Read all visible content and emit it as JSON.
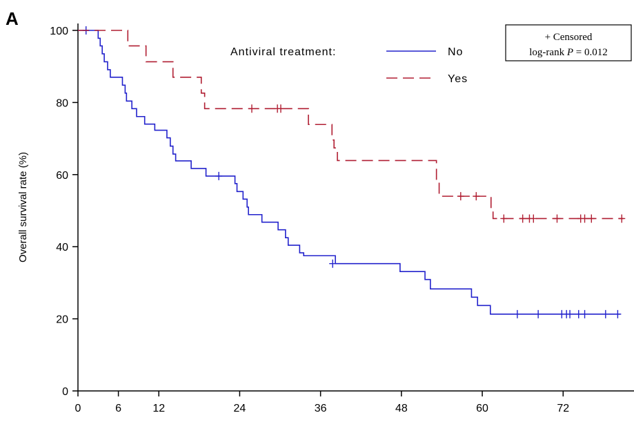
{
  "panel_label": "A",
  "chart_data": {
    "type": "line",
    "ylabel": "Overall survival rate (%)",
    "xlabel": "",
    "xlim": [
      0,
      80
    ],
    "ylim": [
      0,
      100
    ],
    "x_ticks": [
      0,
      6,
      12,
      24,
      36,
      48,
      60,
      72
    ],
    "y_ticks": [
      0,
      20,
      40,
      60,
      80,
      100
    ],
    "legend": {
      "title": "Antiviral treatment:",
      "placement": "top-center"
    },
    "annotation": {
      "line1": "+ Censored",
      "line2_prefix": "log-rank ",
      "line2_italic": "P",
      "line2_suffix": " = 0.012"
    },
    "series": [
      {
        "name": "No",
        "color": "#2222cc",
        "style": "solid",
        "steps": [
          [
            0,
            100
          ],
          [
            3,
            97.8
          ],
          [
            3.3,
            95.7
          ],
          [
            3.6,
            93.5
          ],
          [
            3.9,
            91.3
          ],
          [
            4.4,
            89.1
          ],
          [
            4.8,
            87
          ],
          [
            6.6,
            84.8
          ],
          [
            7,
            82.6
          ],
          [
            7.2,
            80.4
          ],
          [
            8,
            78.3
          ],
          [
            8.7,
            76.1
          ],
          [
            9.9,
            74
          ],
          [
            11.4,
            72.3
          ],
          [
            13.2,
            70.2
          ],
          [
            13.7,
            67.9
          ],
          [
            14.1,
            65.7
          ],
          [
            14.5,
            63.8
          ],
          [
            16.8,
            61.7
          ],
          [
            19,
            59.6
          ],
          [
            23.3,
            57.5
          ],
          [
            23.6,
            55.3
          ],
          [
            24.5,
            53.2
          ],
          [
            25.1,
            51
          ],
          [
            25.3,
            48.9
          ],
          [
            27.3,
            46.8
          ],
          [
            29.7,
            44.7
          ],
          [
            30.8,
            42.5
          ],
          [
            31.2,
            40.4
          ],
          [
            32.9,
            38.3
          ],
          [
            33.5,
            37.5
          ],
          [
            38.2,
            35.3
          ],
          [
            47.8,
            33.1
          ],
          [
            51.5,
            30.9
          ],
          [
            52.3,
            28.3
          ],
          [
            58.4,
            26
          ],
          [
            59.3,
            23.7
          ],
          [
            61.2,
            21.3
          ],
          [
            80.5,
            21.3
          ]
        ],
        "censored": [
          [
            1.2,
            100
          ],
          [
            20.9,
            59.6
          ],
          [
            37.8,
            35.3
          ],
          [
            65.2,
            21.3
          ],
          [
            68.3,
            21.3
          ],
          [
            71.8,
            21.3
          ],
          [
            72.5,
            21.3
          ],
          [
            73,
            21.3
          ],
          [
            74.3,
            21.3
          ],
          [
            75.2,
            21.3
          ],
          [
            78.3,
            21.3
          ],
          [
            80.1,
            21.3
          ]
        ]
      },
      {
        "name": "Yes",
        "color": "#b01e32",
        "style": "dashed",
        "steps": [
          [
            0,
            100
          ],
          [
            7.4,
            95.7
          ],
          [
            10.1,
            91.3
          ],
          [
            14.1,
            87
          ],
          [
            18.3,
            82.6
          ],
          [
            18.8,
            78.3
          ],
          [
            34.2,
            73.9
          ],
          [
            37.7,
            69.6
          ],
          [
            38,
            67.4
          ],
          [
            38.5,
            63.9
          ],
          [
            53.2,
            58.7
          ],
          [
            53.6,
            54
          ],
          [
            61.3,
            50
          ],
          [
            61.6,
            47.8
          ],
          [
            81,
            47.8
          ]
        ],
        "censored": [
          [
            25.8,
            78.3
          ],
          [
            29.6,
            78.3
          ],
          [
            30.1,
            78.3
          ],
          [
            56.8,
            54
          ],
          [
            59.1,
            54
          ],
          [
            63.2,
            47.8
          ],
          [
            66,
            47.8
          ],
          [
            67,
            47.8
          ],
          [
            67.6,
            47.8
          ],
          [
            71.1,
            47.8
          ],
          [
            74.6,
            47.8
          ],
          [
            75.2,
            47.8
          ],
          [
            76.2,
            47.8
          ],
          [
            80.7,
            47.8
          ]
        ]
      }
    ]
  }
}
